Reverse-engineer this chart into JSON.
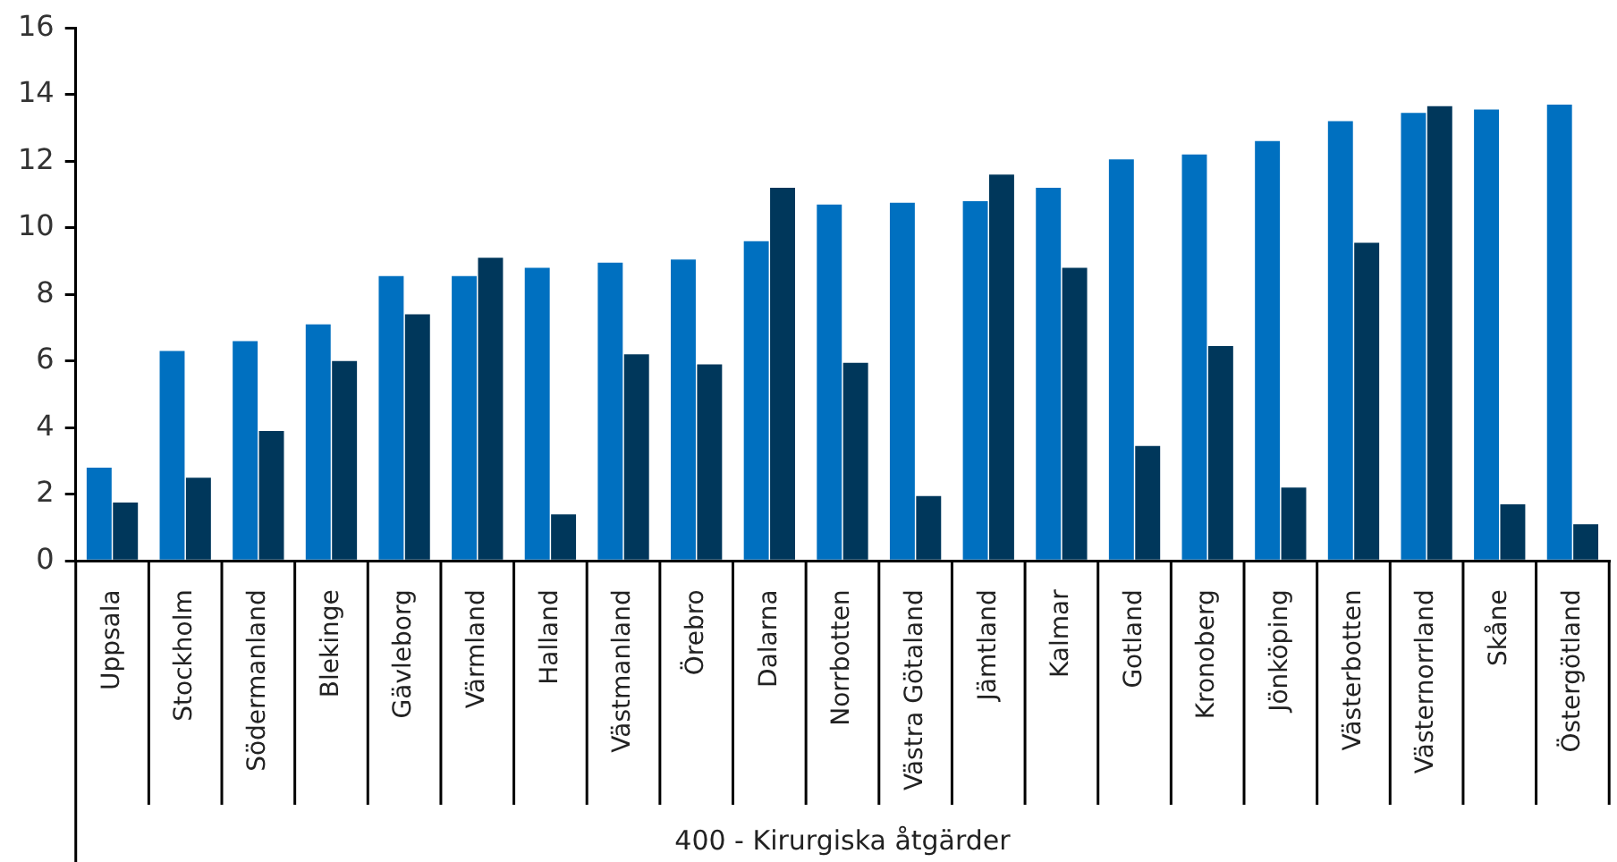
{
  "chart_data": {
    "type": "bar",
    "xlabel": "400 - Kirurgiska åtgärder",
    "categories": [
      "Uppsala",
      "Stockholm",
      "Södermanland",
      "Blekinge",
      "Gävleborg",
      "Värmland",
      "Halland",
      "Västmanland",
      "Örebro",
      "Dalarna",
      "Norrbotten",
      "Västra Götaland",
      "Jämtland",
      "Kalmar",
      "Gotland",
      "Kronoberg",
      "Jönköping",
      "Västerbotten",
      "Västernorrland",
      "Skåne",
      "Östergötland"
    ],
    "series": [
      {
        "color": "#0070c0",
        "values": [
          2.8,
          6.3,
          6.6,
          7.1,
          8.55,
          8.55,
          8.8,
          8.95,
          9.05,
          9.6,
          10.7,
          10.75,
          10.8,
          11.2,
          12.05,
          12.2,
          12.6,
          13.2,
          13.45,
          13.55,
          13.7
        ]
      },
      {
        "color": "#00375b",
        "values": [
          1.75,
          2.5,
          3.9,
          6.0,
          7.4,
          9.1,
          1.4,
          6.2,
          5.9,
          11.2,
          5.95,
          1.95,
          11.6,
          8.8,
          3.45,
          6.45,
          2.2,
          9.55,
          13.65,
          1.7,
          1.1
        ]
      }
    ],
    "ylim": [
      0,
      16
    ],
    "yticks": [
      0,
      2,
      4,
      6,
      8,
      10,
      12,
      14,
      16
    ],
    "grid": false,
    "legend": false
  }
}
